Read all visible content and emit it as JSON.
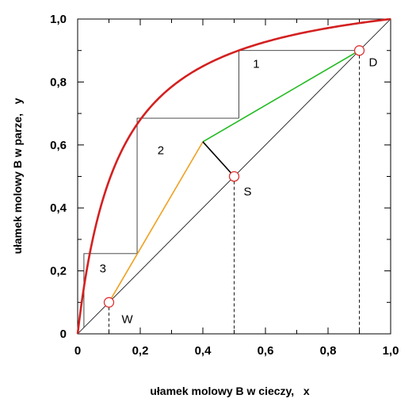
{
  "chart_data": {
    "type": "line",
    "xlabel": "ułamek molowy B w cieczy,   x",
    "ylabel": "ułamek molowy B w parze,   y",
    "xlim": [
      0,
      1
    ],
    "ylim": [
      0,
      1
    ],
    "grid": false,
    "x_ticks": [
      "0",
      "0,2",
      "0,4",
      "0,6",
      "0,8",
      "1,0"
    ],
    "y_ticks": [
      "0",
      "0,2",
      "0,4",
      "0,6",
      "0,8",
      "1,0"
    ],
    "equilibrium_curve": {
      "color": "#d42020",
      "alpha": 8.5
    },
    "operating_lines": [
      {
        "name": "",
        "color": "#22bb22",
        "from": [
          0.9,
          0.9
        ],
        "to": [
          0.4,
          0.61
        ]
      },
      {
        "name": "",
        "color": "#f0a020",
        "from": [
          0.4,
          0.61
        ],
        "to": [
          0.1,
          0.1
        ]
      },
      {
        "name": "",
        "color": "#000000",
        "from": [
          0.4,
          0.61
        ],
        "to": [
          0.5,
          0.5
        ]
      }
    ],
    "stages": [
      {
        "label": "1",
        "points": [
          [
            0.9,
            0.9
          ],
          [
            0.515,
            0.9
          ],
          [
            0.515,
            0.685
          ]
        ]
      },
      {
        "label": "2",
        "points": [
          [
            0.515,
            0.685
          ],
          [
            0.19,
            0.685
          ],
          [
            0.19,
            0.255
          ]
        ]
      },
      {
        "label": "3",
        "points": [
          [
            0.19,
            0.255
          ],
          [
            0.02,
            0.255
          ],
          [
            0.02,
            0.02
          ]
        ]
      }
    ],
    "points": [
      {
        "label": "D",
        "x": 0.9,
        "y": 0.9
      },
      {
        "label": "S",
        "x": 0.5,
        "y": 0.5
      },
      {
        "label": "W",
        "x": 0.1,
        "y": 0.1
      }
    ]
  }
}
